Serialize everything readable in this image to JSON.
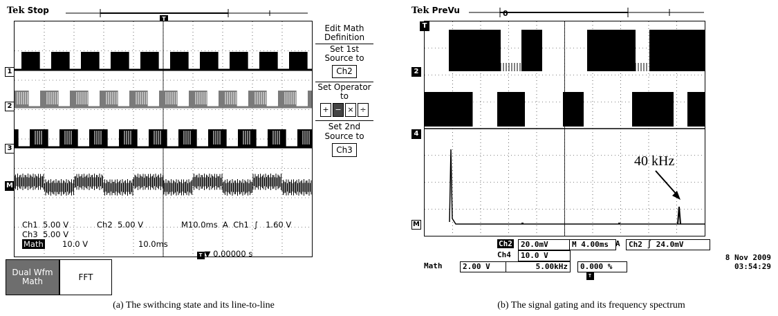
{
  "scope_a": {
    "brand": "Tek",
    "status": "Stop",
    "trigger_marker": "T",
    "channel_markers": [
      "1",
      "2",
      "3",
      "M"
    ],
    "readouts": {
      "ch1": "Ch1  5.00 V",
      "ch2": "Ch2  5.00 V",
      "timebase": "M10.0ms  A  Ch1  ∫   1.60 V",
      "ch3": "Ch3  5.00 V",
      "math_label": "Math",
      "math_scale": "10.0 V",
      "math_time": "10.0ms",
      "trigger_pos": "▼ 0.00000 s"
    },
    "menu": {
      "edit_math": "Edit Math Definition",
      "set_first_source": "Set 1st Source to",
      "first_source_value": "Ch2",
      "set_operator": "Set Operator to",
      "operators": [
        "+",
        "−",
        "×",
        "÷"
      ],
      "selected_operator": "−",
      "set_second_source": "Set 2nd Source to",
      "second_source_value": "Ch3"
    },
    "softkeys": {
      "dual_wfm_math": "Dual Wfm Math",
      "fft": "FFT"
    },
    "caption": "(a) The swithcing state and its line-to-line"
  },
  "scope_b": {
    "brand": "Tek",
    "status": "PreVu",
    "trigger_marker": "T",
    "channel_markers": [
      "2",
      "4",
      "M"
    ],
    "annotation": "40 kHz",
    "readouts": {
      "ch2_label": "Ch2",
      "ch2_value": "20.0mV",
      "timebase": "M 4.00ms",
      "acq_mode": "A",
      "trigger": "Ch2 ∫ 24.0mV",
      "ch4_label": "Ch4",
      "ch4_value": "10.0 V",
      "math_label": "Math",
      "math_scale": "2.00 V",
      "math_freq": "5.00kHz",
      "trigger_pct": "0.000 %"
    },
    "date": "8 Nov 2009",
    "time": "03:54:29",
    "caption": "(b) The signal gating and its frequency spectrum"
  }
}
